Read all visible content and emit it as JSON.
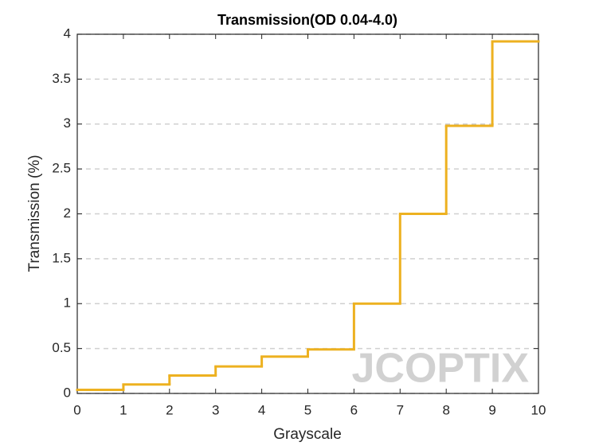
{
  "chart_data": {
    "type": "step",
    "title": "Transmission(OD 0.04-4.0)",
    "x_label": "Grayscale",
    "y_label": "Transmission (%)",
    "watermark": "JCOPTIX",
    "x": [
      0,
      1,
      2,
      3,
      4,
      5,
      6,
      7,
      8,
      9
    ],
    "values": [
      0.04,
      0.1,
      0.2,
      0.3,
      0.41,
      0.49,
      1.0,
      2.0,
      2.98,
      3.92
    ],
    "color": "#edb120",
    "xlim": [
      0,
      10
    ],
    "xticks": [
      0,
      1,
      2,
      3,
      4,
      5,
      6,
      7,
      8,
      9,
      10
    ],
    "ylim": [
      0,
      4
    ],
    "yticks": [
      0,
      0.5,
      1,
      1.5,
      2,
      2.5,
      3,
      3.5,
      4
    ],
    "grid": true
  }
}
